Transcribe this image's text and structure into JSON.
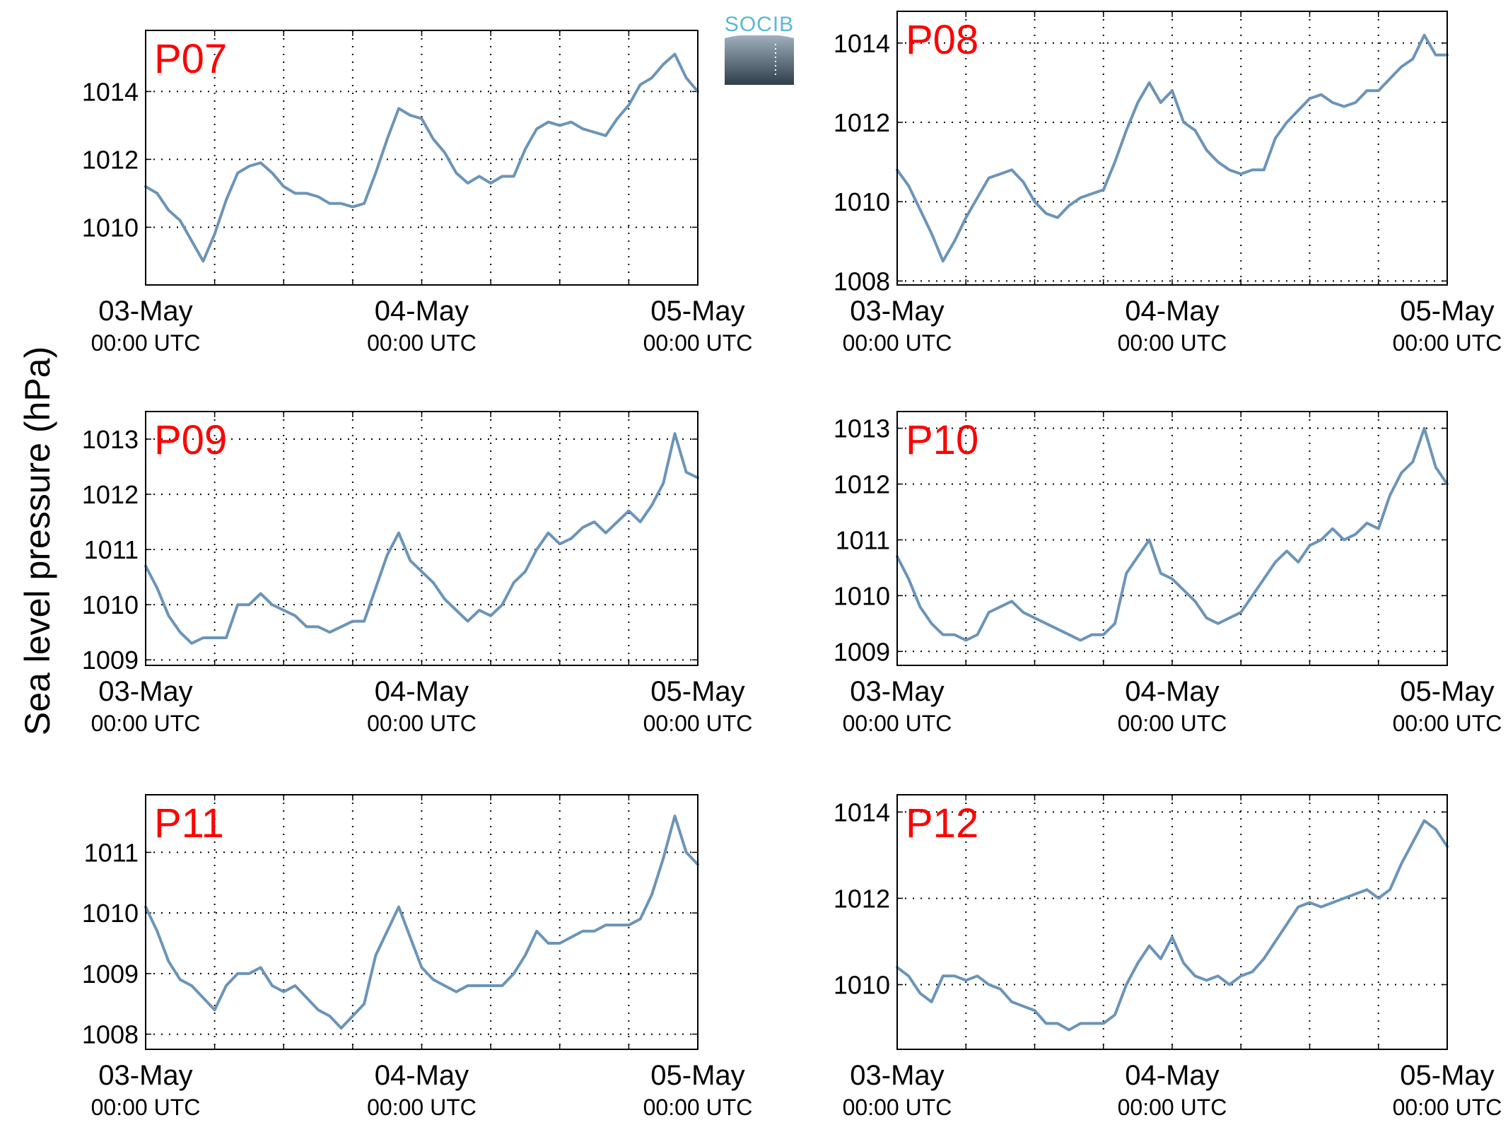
{
  "figure": {
    "ylabel": "Sea level pressure (hPa)",
    "logo_text": "SOCIB",
    "colors": {
      "line": "#6b94b8",
      "panel_label": "#ff0000",
      "grid": "#000000",
      "axis": "#000000"
    }
  },
  "chart_data": [
    {
      "type": "line",
      "name": "P07",
      "label": "P07",
      "x_ticks": [
        [
          "03-May",
          "00:00 UTC"
        ],
        [
          "04-May",
          "00:00 UTC"
        ],
        [
          "05-May",
          "00:00 UTC"
        ]
      ],
      "xlim": [
        0,
        48
      ],
      "ylim": [
        1008.3,
        1015.8
      ],
      "yticks": [
        1010,
        1012,
        1014
      ],
      "x": [
        0,
        1,
        2,
        3,
        4,
        5,
        6,
        7,
        8,
        9,
        10,
        11,
        12,
        13,
        14,
        15,
        16,
        17,
        18,
        19,
        20,
        21,
        22,
        23,
        24,
        25,
        26,
        27,
        28,
        29,
        30,
        31,
        32,
        33,
        34,
        35,
        36,
        37,
        38,
        39,
        40,
        41,
        42,
        43,
        44,
        45,
        46,
        47,
        48
      ],
      "y": [
        1011.2,
        1011.0,
        1010.5,
        1010.2,
        1009.6,
        1009.0,
        1009.8,
        1010.8,
        1011.6,
        1011.8,
        1011.9,
        1011.6,
        1011.2,
        1011.0,
        1011.0,
        1010.9,
        1010.7,
        1010.7,
        1010.6,
        1010.7,
        1011.6,
        1012.6,
        1013.5,
        1013.3,
        1013.2,
        1012.6,
        1012.2,
        1011.6,
        1011.3,
        1011.5,
        1011.3,
        1011.5,
        1011.5,
        1012.3,
        1012.9,
        1013.1,
        1013.0,
        1013.1,
        1012.9,
        1012.8,
        1012.7,
        1013.2,
        1013.6,
        1014.2,
        1014.4,
        1014.8,
        1015.1,
        1014.4,
        1014.0
      ]
    },
    {
      "type": "line",
      "name": "P08",
      "label": "P08",
      "x_ticks": [
        [
          "03-May",
          "00:00 UTC"
        ],
        [
          "04-May",
          "00:00 UTC"
        ],
        [
          "05-May",
          "00:00 UTC"
        ]
      ],
      "xlim": [
        0,
        48
      ],
      "ylim": [
        1007.9,
        1014.8
      ],
      "yticks": [
        1008,
        1010,
        1012,
        1014
      ],
      "x": [
        0,
        1,
        2,
        3,
        4,
        5,
        6,
        7,
        8,
        9,
        10,
        11,
        12,
        13,
        14,
        15,
        16,
        17,
        18,
        19,
        20,
        21,
        22,
        23,
        24,
        25,
        26,
        27,
        28,
        29,
        30,
        31,
        32,
        33,
        34,
        35,
        36,
        37,
        38,
        39,
        40,
        41,
        42,
        43,
        44,
        45,
        46,
        47,
        48
      ],
      "y": [
        1010.8,
        1010.4,
        1009.8,
        1009.2,
        1008.5,
        1009.0,
        1009.6,
        1010.1,
        1010.6,
        1010.7,
        1010.8,
        1010.5,
        1010.0,
        1009.7,
        1009.6,
        1009.9,
        1010.1,
        1010.2,
        1010.3,
        1011.0,
        1011.8,
        1012.5,
        1013.0,
        1012.5,
        1012.8,
        1012.0,
        1011.8,
        1011.3,
        1011.0,
        1010.8,
        1010.7,
        1010.8,
        1010.8,
        1011.6,
        1012.0,
        1012.3,
        1012.6,
        1012.7,
        1012.5,
        1012.4,
        1012.5,
        1012.8,
        1012.8,
        1013.1,
        1013.4,
        1013.6,
        1014.2,
        1013.7,
        1013.7
      ]
    },
    {
      "type": "line",
      "name": "P09",
      "label": "P09",
      "x_ticks": [
        [
          "03-May",
          "00:00 UTC"
        ],
        [
          "04-May",
          "00:00 UTC"
        ],
        [
          "05-May",
          "00:00 UTC"
        ]
      ],
      "xlim": [
        0,
        48
      ],
      "ylim": [
        1008.9,
        1013.5
      ],
      "yticks": [
        1009,
        1010,
        1011,
        1012,
        1013
      ],
      "x": [
        0,
        1,
        2,
        3,
        4,
        5,
        6,
        7,
        8,
        9,
        10,
        11,
        12,
        13,
        14,
        15,
        16,
        17,
        18,
        19,
        20,
        21,
        22,
        23,
        24,
        25,
        26,
        27,
        28,
        29,
        30,
        31,
        32,
        33,
        34,
        35,
        36,
        37,
        38,
        39,
        40,
        41,
        42,
        43,
        44,
        45,
        46,
        47,
        48
      ],
      "y": [
        1010.7,
        1010.3,
        1009.8,
        1009.5,
        1009.3,
        1009.4,
        1009.4,
        1009.4,
        1010.0,
        1010.0,
        1010.2,
        1010.0,
        1009.9,
        1009.8,
        1009.6,
        1009.6,
        1009.5,
        1009.6,
        1009.7,
        1009.7,
        1010.3,
        1010.9,
        1011.3,
        1010.8,
        1010.6,
        1010.4,
        1010.1,
        1009.9,
        1009.7,
        1009.9,
        1009.8,
        1010.0,
        1010.4,
        1010.6,
        1011.0,
        1011.3,
        1011.1,
        1011.2,
        1011.4,
        1011.5,
        1011.3,
        1011.5,
        1011.7,
        1011.5,
        1011.8,
        1012.2,
        1013.1,
        1012.4,
        1012.3
      ]
    },
    {
      "type": "line",
      "name": "P10",
      "label": "P10",
      "x_ticks": [
        [
          "03-May",
          "00:00 UTC"
        ],
        [
          "04-May",
          "00:00 UTC"
        ],
        [
          "05-May",
          "00:00 UTC"
        ]
      ],
      "xlim": [
        0,
        48
      ],
      "ylim": [
        1008.75,
        1013.3
      ],
      "yticks": [
        1009,
        1010,
        1011,
        1012,
        1013
      ],
      "x": [
        0,
        1,
        2,
        3,
        4,
        5,
        6,
        7,
        8,
        9,
        10,
        11,
        12,
        13,
        14,
        15,
        16,
        17,
        18,
        19,
        20,
        21,
        22,
        23,
        24,
        25,
        26,
        27,
        28,
        29,
        30,
        31,
        32,
        33,
        34,
        35,
        36,
        37,
        38,
        39,
        40,
        41,
        42,
        43,
        44,
        45,
        46,
        47,
        48
      ],
      "y": [
        1010.7,
        1010.3,
        1009.8,
        1009.5,
        1009.3,
        1009.3,
        1009.2,
        1009.3,
        1009.7,
        1009.8,
        1009.9,
        1009.7,
        1009.6,
        1009.5,
        1009.4,
        1009.3,
        1009.2,
        1009.3,
        1009.3,
        1009.5,
        1010.4,
        1010.7,
        1011.0,
        1010.4,
        1010.3,
        1010.1,
        1009.9,
        1009.6,
        1009.5,
        1009.6,
        1009.7,
        1010.0,
        1010.3,
        1010.6,
        1010.8,
        1010.6,
        1010.9,
        1011.0,
        1011.2,
        1011.0,
        1011.1,
        1011.3,
        1011.2,
        1011.8,
        1012.2,
        1012.4,
        1013.0,
        1012.3,
        1012.0
      ]
    },
    {
      "type": "line",
      "name": "P11",
      "label": "P11",
      "x_ticks": [
        [
          "03-May",
          "00:00 UTC"
        ],
        [
          "04-May",
          "00:00 UTC"
        ],
        [
          "05-May",
          "00:00 UTC"
        ]
      ],
      "xlim": [
        0,
        48
      ],
      "ylim": [
        1007.75,
        1011.95
      ],
      "yticks": [
        1008,
        1009,
        1010,
        1011
      ],
      "x": [
        0,
        1,
        2,
        3,
        4,
        5,
        6,
        7,
        8,
        9,
        10,
        11,
        12,
        13,
        14,
        15,
        16,
        17,
        18,
        19,
        20,
        21,
        22,
        23,
        24,
        25,
        26,
        27,
        28,
        29,
        30,
        31,
        32,
        33,
        34,
        35,
        36,
        37,
        38,
        39,
        40,
        41,
        42,
        43,
        44,
        45,
        46,
        47,
        48
      ],
      "y": [
        1010.1,
        1009.7,
        1009.2,
        1008.9,
        1008.8,
        1008.6,
        1008.4,
        1008.8,
        1009.0,
        1009.0,
        1009.1,
        1008.8,
        1008.7,
        1008.8,
        1008.6,
        1008.4,
        1008.3,
        1008.1,
        1008.3,
        1008.5,
        1009.3,
        1009.7,
        1010.1,
        1009.6,
        1009.1,
        1008.9,
        1008.8,
        1008.7,
        1008.8,
        1008.8,
        1008.8,
        1008.8,
        1009.0,
        1009.3,
        1009.7,
        1009.5,
        1009.5,
        1009.6,
        1009.7,
        1009.7,
        1009.8,
        1009.8,
        1009.8,
        1009.9,
        1010.3,
        1010.9,
        1011.6,
        1011.0,
        1010.8
      ]
    },
    {
      "type": "line",
      "name": "P12",
      "label": "P12",
      "x_ticks": [
        [
          "03-May",
          "00:00 UTC"
        ],
        [
          "04-May",
          "00:00 UTC"
        ],
        [
          "05-May",
          "00:00 UTC"
        ]
      ],
      "xlim": [
        0,
        48
      ],
      "ylim": [
        1008.5,
        1014.4
      ],
      "yticks": [
        1010,
        1012,
        1014
      ],
      "x": [
        0,
        1,
        2,
        3,
        4,
        5,
        6,
        7,
        8,
        9,
        10,
        11,
        12,
        13,
        14,
        15,
        16,
        17,
        18,
        19,
        20,
        21,
        22,
        23,
        24,
        25,
        26,
        27,
        28,
        29,
        30,
        31,
        32,
        33,
        34,
        35,
        36,
        37,
        38,
        39,
        40,
        41,
        42,
        43,
        44,
        45,
        46,
        47,
        48
      ],
      "y": [
        1010.4,
        1010.2,
        1009.8,
        1009.6,
        1010.2,
        1010.2,
        1010.1,
        1010.2,
        1010.0,
        1009.9,
        1009.6,
        1009.5,
        1009.4,
        1009.1,
        1009.1,
        1008.95,
        1009.1,
        1009.1,
        1009.1,
        1009.3,
        1010.0,
        1010.5,
        1010.9,
        1010.6,
        1011.1,
        1010.5,
        1010.2,
        1010.1,
        1010.2,
        1010.0,
        1010.2,
        1010.3,
        1010.6,
        1011.0,
        1011.4,
        1011.8,
        1011.9,
        1011.8,
        1011.9,
        1012.0,
        1012.1,
        1012.2,
        1012.0,
        1012.2,
        1012.8,
        1013.3,
        1013.8,
        1013.6,
        1013.2
      ]
    }
  ]
}
